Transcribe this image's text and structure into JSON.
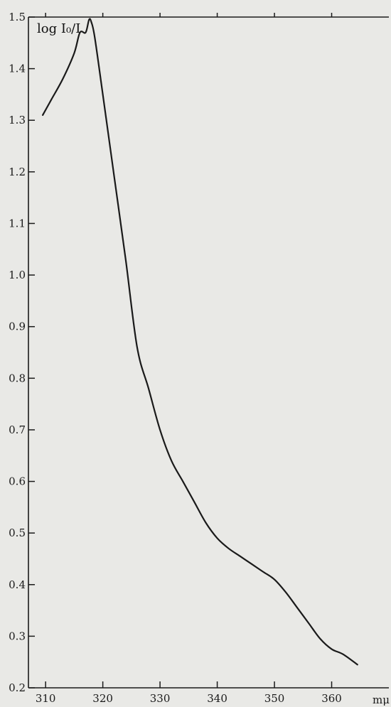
{
  "chart_data": {
    "type": "line",
    "title": "",
    "ylabel": "log I₀/I",
    "xlabel": "mμ",
    "xlim": [
      307,
      370
    ],
    "ylim": [
      0.2,
      1.5
    ],
    "x_ticks": [
      310,
      320,
      330,
      340,
      350,
      360
    ],
    "x_tick_labels": [
      "310",
      "320",
      "330",
      "340",
      "350",
      "360"
    ],
    "y_ticks": [
      0.2,
      0.3,
      0.4,
      0.5,
      0.6,
      0.7,
      0.8,
      0.9,
      1.0,
      1.1,
      1.2,
      1.3,
      1.4,
      1.5
    ],
    "y_tick_labels": [
      "0.2",
      "0.3",
      "0.4",
      "0.5",
      "0.6",
      "0.7",
      "0.8",
      "0.9",
      "1.0",
      "1.1",
      "1.2",
      "1.3",
      "1.4",
      "1.5"
    ],
    "grid": false,
    "series": [
      {
        "x": [
          309.5,
          311,
          313,
          315,
          316,
          317,
          317.6,
          318,
          318.6,
          320,
          322,
          324,
          326,
          328,
          330,
          332,
          334,
          336,
          338,
          340,
          342,
          344,
          346,
          348,
          350,
          352,
          354,
          356,
          358,
          360,
          362,
          364.5
        ],
        "y": [
          1.31,
          1.34,
          1.38,
          1.43,
          1.47,
          1.47,
          1.495,
          1.49,
          1.46,
          1.35,
          1.19,
          1.03,
          0.86,
          0.78,
          0.7,
          0.64,
          0.6,
          0.56,
          0.52,
          0.49,
          0.47,
          0.455,
          0.44,
          0.425,
          0.41,
          0.385,
          0.355,
          0.325,
          0.295,
          0.275,
          0.265,
          0.245
        ]
      }
    ]
  },
  "colors": {
    "background": "#e9e9e6",
    "ink": "#1a1a1a"
  }
}
